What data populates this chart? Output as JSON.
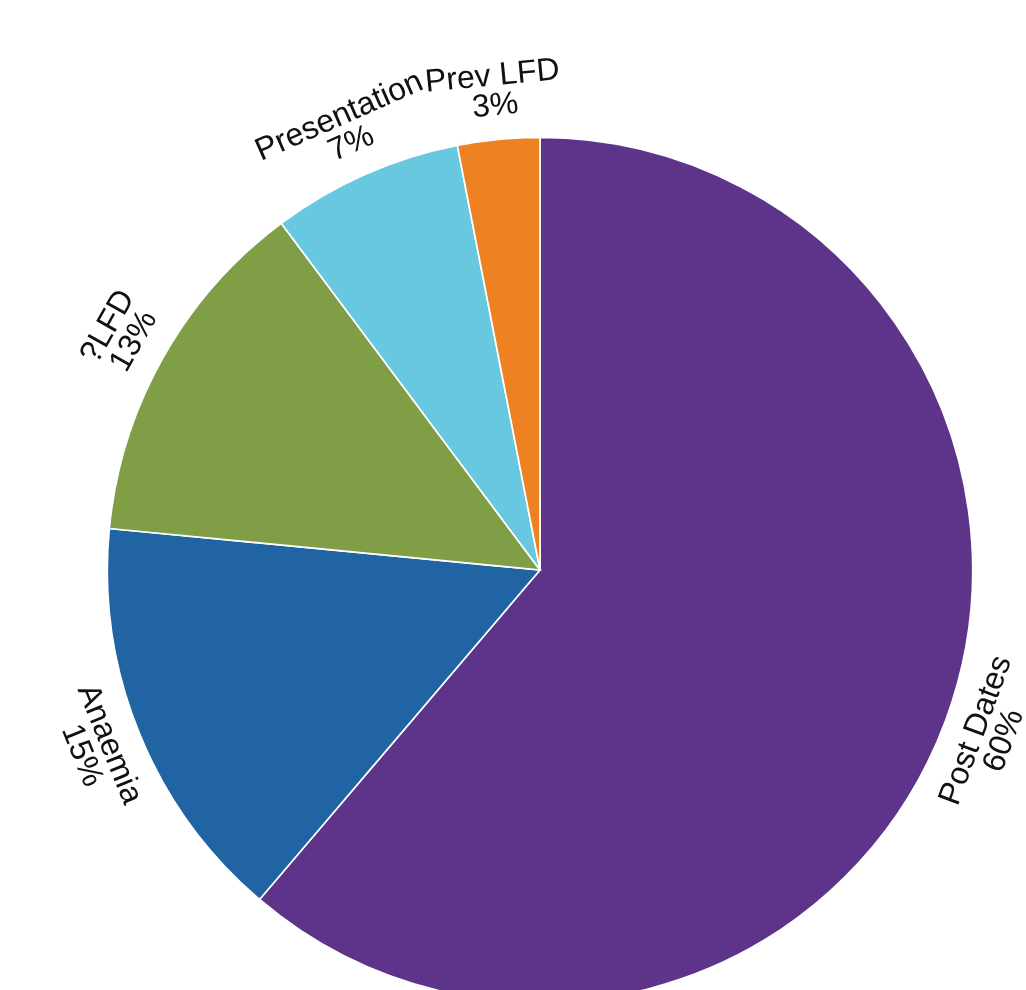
{
  "chart_data": {
    "type": "pie",
    "categories": [
      "Post Dates",
      "Anaemia",
      "?LFD",
      "Presentation",
      "Prev LFD"
    ],
    "values": [
      60,
      15,
      13,
      7,
      3
    ],
    "value_labels": [
      "60%",
      "15%",
      "13%",
      "7%",
      "3%"
    ],
    "colors": [
      "#5e348a",
      "#2064a4",
      "#7f9e46",
      "#67c8e0",
      "#ee8122"
    ]
  }
}
